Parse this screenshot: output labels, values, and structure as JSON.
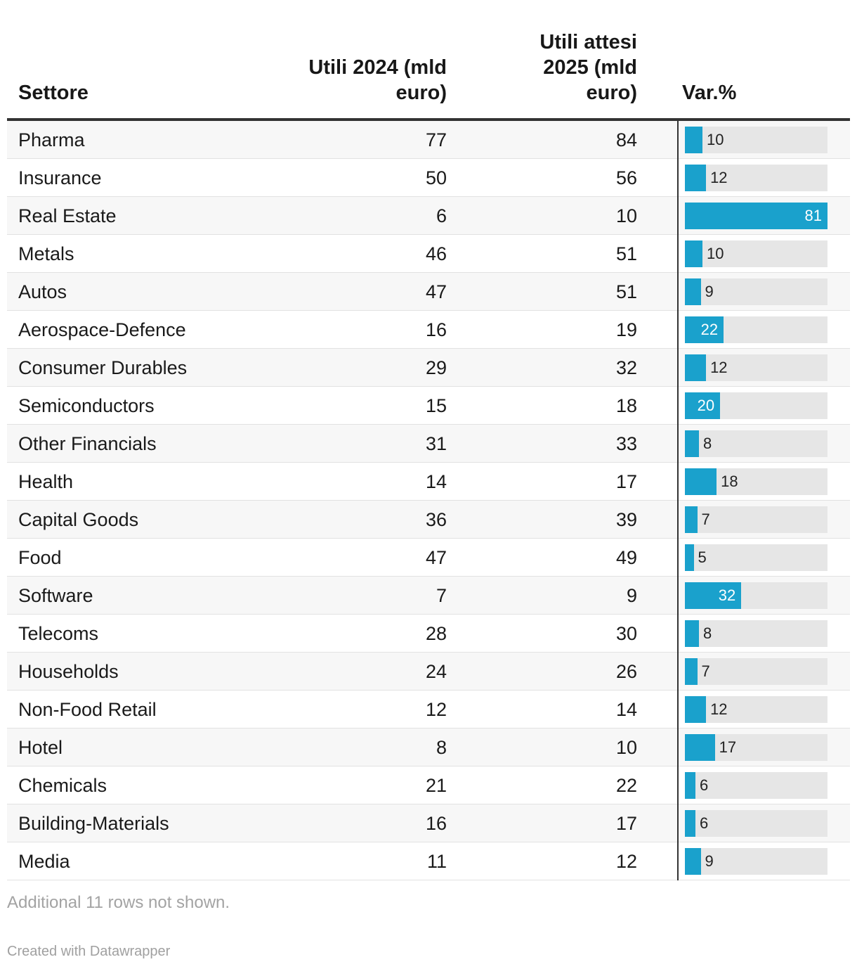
{
  "chart_data": {
    "type": "table",
    "columns": {
      "sector": "Settore",
      "u2024": "Utili 2024 (mld euro)",
      "u2025": "Utili attesi 2025 (mld euro)",
      "var": "Var.%"
    },
    "var_max": 81,
    "bar_color": "#1aa1cc",
    "rows": [
      {
        "sector": "Pharma",
        "u2024": "77",
        "u2025": "84",
        "var": 10
      },
      {
        "sector": "Insurance",
        "u2024": "50",
        "u2025": "56",
        "var": 12
      },
      {
        "sector": "Real Estate",
        "u2024": "6",
        "u2025": "10",
        "var": 81
      },
      {
        "sector": "Metals",
        "u2024": "46",
        "u2025": "51",
        "var": 10
      },
      {
        "sector": "Autos",
        "u2024": "47",
        "u2025": "51",
        "var": 9
      },
      {
        "sector": "Aerospace-Defence",
        "u2024": "16",
        "u2025": "19",
        "var": 22
      },
      {
        "sector": "Consumer Durables",
        "u2024": "29",
        "u2025": "32",
        "var": 12
      },
      {
        "sector": "Semiconductors",
        "u2024": "15",
        "u2025": "18",
        "var": 20
      },
      {
        "sector": "Other Financials",
        "u2024": "31",
        "u2025": "33",
        "var": 8
      },
      {
        "sector": "Health",
        "u2024": "14",
        "u2025": "17",
        "var": 18
      },
      {
        "sector": "Capital Goods",
        "u2024": "36",
        "u2025": "39",
        "var": 7
      },
      {
        "sector": "Food",
        "u2024": "47",
        "u2025": "49",
        "var": 5
      },
      {
        "sector": "Software",
        "u2024": "7",
        "u2025": "9",
        "var": 32
      },
      {
        "sector": "Telecoms",
        "u2024": "28",
        "u2025": "30",
        "var": 8
      },
      {
        "sector": "Households",
        "u2024": "24",
        "u2025": "26",
        "var": 7
      },
      {
        "sector": "Non-Food Retail",
        "u2024": "12",
        "u2025": "14",
        "var": 12
      },
      {
        "sector": "Hotel",
        "u2024": "8",
        "u2025": "10",
        "var": 17
      },
      {
        "sector": "Chemicals",
        "u2024": "21",
        "u2025": "22",
        "var": 6
      },
      {
        "sector": "Building-Materials",
        "u2024": "16",
        "u2025": "17",
        "var": 6
      },
      {
        "sector": "Media",
        "u2024": "11",
        "u2025": "12",
        "var": 9
      }
    ]
  },
  "footer": {
    "note": "Additional 11 rows not shown.",
    "credit": "Created with Datawrapper"
  }
}
